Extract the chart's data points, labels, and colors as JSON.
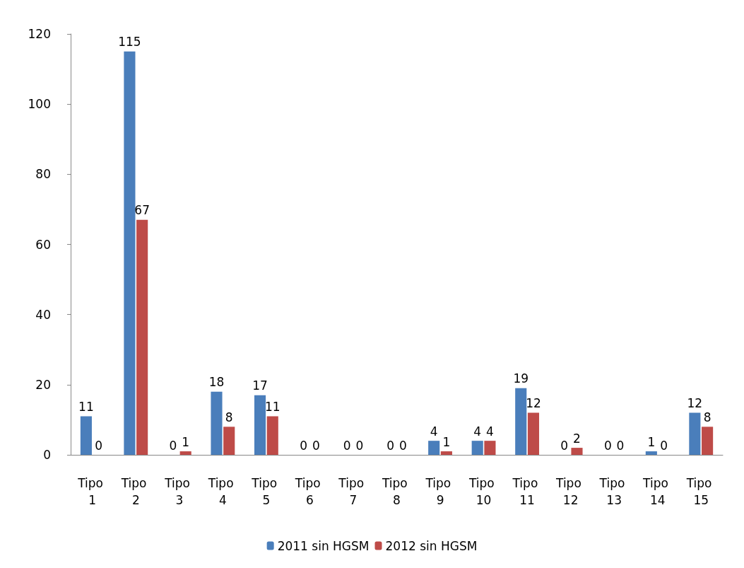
{
  "chart_data": {
    "type": "bar",
    "categories": [
      "Tipo 1",
      "Tipo 2",
      "Tipo 3",
      "Tipo 4",
      "Tipo 5",
      "Tipo 6",
      "Tipo 7",
      "Tipo 8",
      "Tipo 9",
      "Tipo 10",
      "Tipo 11",
      "Tipo 12",
      "Tipo 13",
      "Tipo 14",
      "Tipo 15"
    ],
    "series": [
      {
        "name": "2011 sin HGSM",
        "color": "#4a7ebb",
        "values": [
          11,
          115,
          0,
          18,
          17,
          0,
          0,
          0,
          4,
          4,
          19,
          0,
          0,
          1,
          12
        ]
      },
      {
        "name": "2012 sin HGSM",
        "color": "#be4b48",
        "values": [
          0,
          67,
          1,
          8,
          11,
          0,
          0,
          0,
          1,
          4,
          12,
          2,
          0,
          0,
          8
        ]
      }
    ],
    "ylim": [
      0,
      120
    ],
    "yticks": [
      0,
      20,
      40,
      60,
      80,
      100,
      120
    ],
    "grid": false,
    "legend": "bottom",
    "data_labels": true
  }
}
